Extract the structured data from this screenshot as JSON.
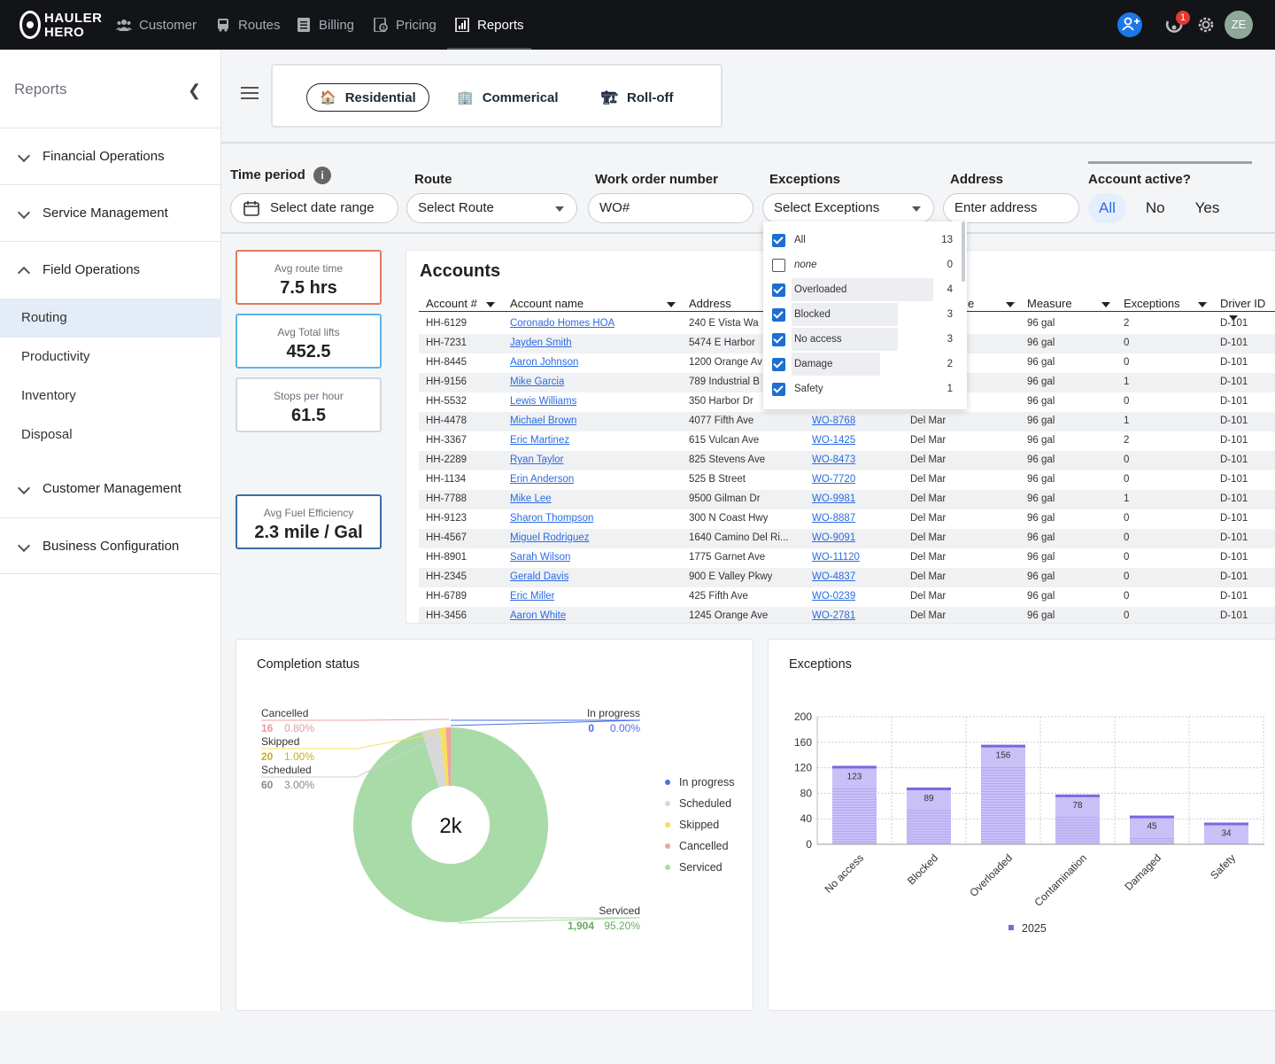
{
  "brand": {
    "line1": "HAULER",
    "line2": "HERO"
  },
  "nav": [
    {
      "label": "Customer",
      "icon": "users-icon"
    },
    {
      "label": "Routes",
      "icon": "truck-icon"
    },
    {
      "label": "Billing",
      "icon": "document-icon"
    },
    {
      "label": "Pricing",
      "icon": "price-tag-icon"
    },
    {
      "label": "Reports",
      "icon": "report-icon"
    }
  ],
  "header": {
    "notification_count": "1",
    "avatar": "ZE"
  },
  "sidebar": {
    "title": "Reports",
    "sections": [
      "Financial Operations",
      "Service Management",
      "Field Operations",
      "Customer Management",
      "Business Configuration"
    ],
    "items": [
      "Routing",
      "Productivity",
      "Inventory",
      "Disposal"
    ]
  },
  "tabs": [
    "Residential",
    "Commerical",
    "Roll-off"
  ],
  "filters": {
    "time_label": "Time period",
    "time_placeholder": "Select date range",
    "route_label": "Route",
    "route_placeholder": "Select Route",
    "wo_label": "Work order number",
    "wo_placeholder": "WO#",
    "exc_label": "Exceptions",
    "exc_placeholder": "Select Exceptions",
    "addr_label": "Address",
    "addr_placeholder": "Enter address",
    "active_label": "Account active?",
    "active_options": [
      "All",
      "No",
      "Yes"
    ]
  },
  "kpis": [
    {
      "label": "Avg route time",
      "value": "7.5 hrs",
      "color": "#e07a5f"
    },
    {
      "label": "Avg Total lifts",
      "value": "452.5",
      "color": "#5bb5e8"
    },
    {
      "label": "Stops per hour",
      "value": "61.5",
      "color": "#d5d8dd"
    },
    {
      "label": "Avg Fuel Efficiency",
      "value": "2.3 mile / Gal",
      "color": "#3a6ea5"
    }
  ],
  "accounts": {
    "title": "Accounts",
    "headers": [
      "Account #",
      "Account name",
      "Address",
      "e",
      "Measure",
      "Exceptions",
      "Driver ID"
    ],
    "rows": [
      [
        "HH-6129",
        "Coronado Homes HOA",
        "240 E Vista Wa",
        "",
        "",
        "96 gal",
        "2",
        "D-101"
      ],
      [
        "HH-7231",
        "Jayden Smith",
        "5474 E Harbor",
        "",
        "",
        "96 gal",
        "0",
        "D-101"
      ],
      [
        "HH-8445",
        "Aaron Johnson",
        "1200 Orange Av",
        "",
        "",
        "96 gal",
        "0",
        "D-101"
      ],
      [
        "HH-9156",
        "Mike Garcia",
        "789 Industrial B",
        "",
        "",
        "96 gal",
        "1",
        "D-101"
      ],
      [
        "HH-5532",
        "Lewis Williams",
        "350 Harbor Dr",
        "",
        "",
        "96 gal",
        "0",
        "D-101"
      ],
      [
        "HH-4478",
        "Michael Brown",
        "4077 Fifth Ave",
        "WO-8768",
        "Del Mar",
        "96 gal",
        "1",
        "D-101"
      ],
      [
        "HH-3367",
        "Eric Martinez",
        "615 Vulcan Ave",
        "WO-1425",
        "Del Mar",
        "96 gal",
        "2",
        "D-101"
      ],
      [
        "HH-2289",
        "Ryan Taylor",
        "825 Stevens Ave",
        "WO-8473",
        "Del Mar",
        "96 gal",
        "0",
        "D-101"
      ],
      [
        "HH-1134",
        "Erin Anderson",
        "525 B Street",
        "WO-7720",
        "Del Mar",
        "96 gal",
        "0",
        "D-101"
      ],
      [
        "HH-7788",
        "Mike Lee",
        "9500 Gilman Dr",
        "WO-9981",
        "Del Mar",
        "96 gal",
        "1",
        "D-101"
      ],
      [
        "HH-9123",
        "Sharon Thompson",
        "300 N Coast Hwy",
        "WO-8887",
        "Del Mar",
        "96 gal",
        "0",
        "D-101"
      ],
      [
        "HH-4567",
        "Miguel Rodriguez",
        "1640 Camino Del Ri...",
        "WO-9091",
        "Del Mar",
        "96 gal",
        "0",
        "D-101"
      ],
      [
        "HH-8901",
        "Sarah Wilson",
        "1775 Garnet Ave",
        "WO-11120",
        "Del Mar",
        "96 gal",
        "0",
        "D-101"
      ],
      [
        "HH-2345",
        "Gerald Davis",
        "900 E Valley Pkwy",
        "WO-4837",
        "Del Mar",
        "96 gal",
        "0",
        "D-101"
      ],
      [
        "HH-6789",
        "Eric Miller",
        "425 Fifth Ave",
        "WO-0239",
        "Del Mar",
        "96 gal",
        "0",
        "D-101"
      ],
      [
        "HH-3456",
        "Aaron White",
        "1245 Orange Ave",
        "WO-2781",
        "Del Mar",
        "96 gal",
        "0",
        "D-101"
      ]
    ]
  },
  "exceptions_dropdown": [
    {
      "label": "All",
      "count": "13",
      "checked": true
    },
    {
      "label": "none",
      "count": "0",
      "checked": false
    },
    {
      "label": "Overloaded",
      "count": "4",
      "checked": true
    },
    {
      "label": "Blocked",
      "count": "3",
      "checked": true
    },
    {
      "label": "No access",
      "count": "3",
      "checked": true
    },
    {
      "label": "Damage",
      "count": "2",
      "checked": true
    },
    {
      "label": "Safety",
      "count": "1",
      "checked": true
    }
  ],
  "chart_data": [
    {
      "type": "pie",
      "title": "Completion status",
      "center_label": "2k",
      "slices": [
        {
          "name": "In progress",
          "count": "0",
          "pct": "0.00%",
          "value": 0,
          "color": "#4a6fe3"
        },
        {
          "name": "Scheduled",
          "count": "60",
          "pct": "3.00%",
          "value": 60,
          "color": "#d8d8d8"
        },
        {
          "name": "Skipped",
          "count": "20",
          "pct": "1.00%",
          "value": 20,
          "color": "#f5e05b"
        },
        {
          "name": "Cancelled",
          "count": "16",
          "pct": "0.80%",
          "value": 16,
          "color": "#f2a0a0"
        },
        {
          "name": "Serviced",
          "count": "1,904",
          "pct": "95.20%",
          "value": 1904,
          "color": "#a8dba8"
        }
      ]
    },
    {
      "type": "bar",
      "title": "Exceptions",
      "categories": [
        "No access",
        "Blocked",
        "Overloaded",
        "Contamination",
        "Damaged",
        "Safety"
      ],
      "series": [
        {
          "name": "2025",
          "values": [
            123,
            89,
            156,
            78,
            45,
            34
          ]
        }
      ],
      "ylim": [
        0,
        200
      ],
      "yticks": [
        "0",
        "40",
        "80",
        "120",
        "160",
        "200"
      ],
      "grid": true,
      "legend": "bottom",
      "bar_color": "#c9c0f7",
      "bar_top_color": "#7a68e0"
    }
  ]
}
